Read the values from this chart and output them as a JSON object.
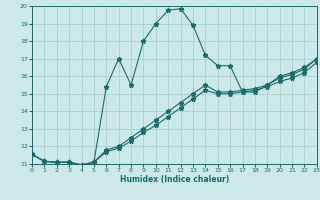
{
  "xlabel": "Humidex (Indice chaleur)",
  "bg_color": "#cce8e8",
  "grid_color": "#aad4d4",
  "line_color": "#1a6b6b",
  "xlim": [
    0,
    23
  ],
  "ylim": [
    11,
    20
  ],
  "xticks": [
    0,
    1,
    2,
    3,
    4,
    5,
    6,
    7,
    8,
    9,
    10,
    11,
    12,
    13,
    14,
    15,
    16,
    17,
    18,
    19,
    20,
    21,
    22,
    23
  ],
  "yticks": [
    11,
    12,
    13,
    14,
    15,
    16,
    17,
    18,
    19,
    20
  ],
  "series": [
    {
      "x": [
        0,
        1,
        2,
        3,
        4,
        5,
        6,
        7,
        8,
        9,
        10,
        11,
        12,
        13,
        14,
        15,
        16,
        17,
        18,
        19,
        20,
        21,
        22,
        23
      ],
      "y": [
        11.55,
        11.15,
        11.1,
        11.1,
        10.95,
        11.1,
        15.4,
        17.0,
        15.5,
        18.0,
        19.0,
        19.75,
        19.85,
        18.9,
        17.2,
        16.6,
        16.6,
        15.1,
        15.1,
        15.5,
        16.0,
        16.2,
        16.5,
        17.0
      ]
    },
    {
      "x": [
        0,
        1,
        2,
        3,
        4,
        5,
        6,
        7,
        8,
        9,
        10,
        11,
        12,
        13,
        14,
        15,
        16,
        17,
        18,
        19,
        20,
        21,
        22,
        23
      ],
      "y": [
        11.55,
        11.15,
        11.1,
        11.1,
        10.95,
        11.1,
        11.8,
        12.0,
        12.5,
        13.0,
        13.5,
        14.0,
        14.5,
        15.0,
        15.5,
        15.1,
        15.1,
        15.2,
        15.3,
        15.5,
        15.9,
        16.1,
        16.4,
        17.0
      ]
    },
    {
      "x": [
        0,
        1,
        2,
        3,
        4,
        5,
        6,
        7,
        8,
        9,
        10,
        11,
        12,
        13,
        14,
        15,
        16,
        17,
        18,
        19,
        20,
        21,
        22,
        23
      ],
      "y": [
        11.55,
        11.15,
        11.1,
        11.1,
        10.95,
        11.1,
        11.7,
        11.9,
        12.3,
        12.8,
        13.2,
        13.7,
        14.2,
        14.7,
        15.2,
        15.0,
        15.0,
        15.1,
        15.2,
        15.4,
        15.7,
        15.9,
        16.2,
        16.8
      ]
    }
  ]
}
